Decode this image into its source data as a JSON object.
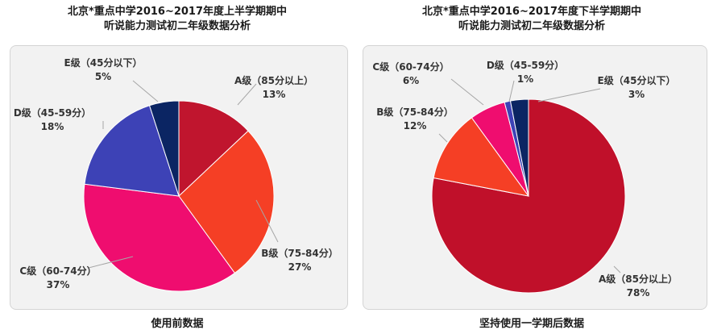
{
  "chart_data": [
    {
      "type": "pie",
      "title_lines": [
        "北京*重点中学2016~2017年度上半学期期中",
        "听说能力测试初二年级数据分析"
      ],
      "caption": "使用前数据",
      "slices": [
        {
          "label": "A级（85分以上）",
          "value": 13,
          "value_text": "13%",
          "color": "#c0152e"
        },
        {
          "label": "B级（75-84分）",
          "value": 27,
          "value_text": "27%",
          "color": "#f53f25"
        },
        {
          "label": "C级（60-74分）",
          "value": 37,
          "value_text": "37%",
          "color": "#ef0d6f"
        },
        {
          "label": "D级（45-59分）",
          "value": 18,
          "value_text": "18%",
          "color": "#3d42b6"
        },
        {
          "label": "E级（45分以下）",
          "value": 5,
          "value_text": "5%",
          "color": "#0b2563"
        }
      ]
    },
    {
      "type": "pie",
      "title_lines": [
        "北京*重点中学2016~2017年度下半学期期中",
        "听说能力测试初二年级数据分析"
      ],
      "caption": "坚持使用一学期后数据",
      "slices": [
        {
          "label": "A级（85分以上）",
          "value": 78,
          "value_text": "78%",
          "color": "#c0102a"
        },
        {
          "label": "B级（75-84分）",
          "value": 12,
          "value_text": "12%",
          "color": "#f53f25"
        },
        {
          "label": "C级（60-74分）",
          "value": 6,
          "value_text": "6%",
          "color": "#ef0d6f"
        },
        {
          "label": "D级（45-59分）",
          "value": 1,
          "value_text": "1%",
          "color": "#3d42b6"
        },
        {
          "label": "E级（45分以下）",
          "value": 3,
          "value_text": "3%",
          "color": "#0b2563"
        }
      ]
    }
  ]
}
